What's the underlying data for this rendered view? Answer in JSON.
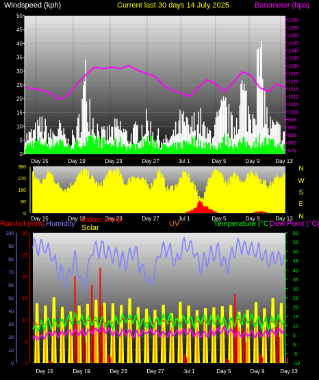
{
  "header": {
    "left": "Windspeed (kph)",
    "center": "Current last 30 days 14 July 2025",
    "right": "Barometer (hpa)"
  },
  "colors": {
    "wind": "#ffffff",
    "gust": "#00ff00",
    "baro": "#ff00ff",
    "dir": "#ffff00",
    "rain": "#ff0000",
    "hum": "#8080ff",
    "indoor": "#ff0000",
    "solar": "#ffff00",
    "uv": "#ff8000",
    "temp": "#00ff00",
    "dew": "#ff00ff",
    "compass": "#ffff00"
  },
  "panel3_legend": {
    "rainfall": "Rainfall (mm)",
    "humidity": "Humidity",
    "indoor": "Indoor temp",
    "solar": "Solar",
    "uv": "UV",
    "temperature": "Temperature (°C)",
    "dewpoint": "Dew Point (°C)"
  },
  "compass_labels": [
    "N",
    "W",
    "S",
    "E",
    "N"
  ],
  "chart_data": [
    {
      "type": "line",
      "x_tick_labels": [
        "Day 15",
        "Day 19",
        "Day 23",
        "Day 27",
        "Jul 1",
        "Day 5",
        "Day 9",
        "Day 13"
      ],
      "y_left": {
        "label": "Windspeed (kph)",
        "range": [
          0,
          50
        ],
        "ticks": [
          "0",
          "5",
          "10",
          "15",
          "20",
          "25",
          "30",
          "35",
          "40",
          "45",
          "50"
        ]
      },
      "y_right": {
        "label": "Barometer (hpa)",
        "range": [
          972.5,
          1062.5
        ],
        "ticks": [
          "975",
          "980",
          "985",
          "990",
          "995",
          "1000",
          "1005",
          "1010",
          "1015",
          "1020",
          "1025",
          "1030",
          "1035",
          "1040",
          "1045",
          "1050",
          "1055",
          "1060"
        ]
      },
      "series": [
        {
          "name": "",
          "color": "#ffffff",
          "values": [
            8,
            10,
            14,
            9,
            12,
            6,
            10,
            34,
            15,
            9,
            11,
            13,
            8,
            12,
            15,
            10,
            6,
            8,
            16,
            12,
            18,
            9,
            14,
            22,
            12,
            31,
            18,
            45,
            14,
            12,
            10
          ]
        },
        {
          "name": "",
          "color": "#00ff00",
          "values": [
            3,
            5,
            5,
            4,
            6,
            3,
            4,
            5,
            6,
            5,
            4,
            5,
            3,
            4,
            6,
            5,
            3,
            3,
            4,
            6,
            5,
            4,
            3,
            6,
            4,
            5,
            4,
            6,
            5,
            4,
            3
          ]
        },
        {
          "name": "",
          "color": "#ff00ff",
          "values": [
            1016,
            1015,
            1014,
            1012,
            1008,
            1011,
            1018,
            1024,
            1029,
            1028,
            1029,
            1028,
            1030,
            1027,
            1025,
            1023,
            1017,
            1014,
            1012,
            1010,
            1016,
            1021,
            1018,
            1013,
            1019,
            1026,
            1024,
            1016,
            1013,
            1018,
            1016
          ]
        }
      ]
    },
    {
      "type": "bar",
      "x_tick_labels": [
        "Day 15",
        "Day 19",
        "Day 23",
        "Day 27",
        "Jul 1",
        "Day 5",
        "Day 9",
        "Day 13"
      ],
      "y_left": {
        "range": [
          0,
          360
        ],
        "ticks": [
          "0",
          "90",
          "180",
          "270",
          "360"
        ]
      },
      "series": [
        {
          "name": "",
          "color": "#ffff00",
          "values": [
            300,
            230,
            320,
            210,
            180,
            250,
            330,
            270,
            200,
            310,
            330,
            220,
            290,
            250,
            200,
            330,
            180,
            210,
            310,
            240,
            90,
            270,
            330,
            230,
            290,
            250,
            320,
            260,
            210,
            270,
            300
          ]
        },
        {
          "name": "",
          "color": "#ff0000",
          "values": [
            0,
            0,
            0,
            0,
            0,
            0,
            0,
            0,
            0,
            0,
            0,
            0,
            0,
            0,
            0,
            0,
            0,
            0,
            0,
            30,
            120,
            40,
            0,
            0,
            0,
            0,
            0,
            20,
            0,
            0,
            0
          ]
        }
      ]
    },
    {
      "type": "line",
      "x_tick_labels": [
        "Day 15",
        "Day 19",
        "Day 23",
        "Day 27",
        "Jul 1",
        "Day 5",
        "Day 9",
        "Day 13"
      ],
      "y_humidity": {
        "range": [
          0,
          100
        ],
        "ticks": [
          "0",
          "10",
          "20",
          "30",
          "40",
          "50",
          "60",
          "70",
          "80",
          "90",
          "100"
        ]
      },
      "y_rain": {
        "range": [
          0,
          30
        ],
        "ticks": [
          "0",
          "5",
          "10",
          "15",
          "20",
          "25",
          "30"
        ]
      },
      "y_temp": {
        "range": [
          -10,
          60
        ],
        "ticks": [
          "-10",
          "-5",
          "0",
          "5",
          "10",
          "15",
          "20",
          "25",
          "30",
          "35",
          "40",
          "45",
          "50",
          "55",
          "60"
        ]
      },
      "series": [
        {
          "name": "Humidity",
          "color": "#8080ff",
          "values": [
            88,
            90,
            85,
            72,
            62,
            80,
            58,
            86,
            88,
            84,
            82,
            78,
            86,
            72,
            60,
            84,
            88,
            76,
            90,
            88,
            74,
            82,
            86,
            74,
            88,
            90,
            86,
            84,
            78,
            80,
            82
          ]
        },
        {
          "name": "Rainfall (mm)",
          "color": "#ff0000",
          "values": [
            0,
            0,
            0.5,
            0,
            0,
            20,
            8,
            18,
            22,
            2,
            0,
            0,
            0,
            0,
            0,
            0,
            0,
            0,
            2,
            0,
            0,
            0,
            0,
            1,
            16,
            8,
            0,
            2,
            0,
            10,
            2
          ]
        },
        {
          "name": "Temperature (°C)",
          "color": "#00ff00",
          "values": [
            8,
            10,
            12,
            11,
            13,
            14,
            12,
            13,
            12,
            11,
            12,
            14,
            13,
            12,
            11,
            13,
            14,
            12,
            13,
            12,
            14,
            12,
            13,
            11,
            12,
            14,
            13,
            12,
            11,
            13,
            12
          ]
        },
        {
          "name": "Dew Point (°C)",
          "color": "#ff00ff",
          "values": [
            3,
            4,
            6,
            5,
            6,
            7,
            6,
            7,
            8,
            7,
            6,
            7,
            5,
            6,
            7,
            6,
            5,
            6,
            7,
            6,
            5,
            6,
            7,
            8,
            6,
            5,
            6,
            5,
            6,
            7,
            8
          ]
        },
        {
          "name": "Indoor temp",
          "color": "#ff0000",
          "values": [
            11,
            11,
            12,
            12,
            12,
            13,
            13,
            12,
            12,
            12,
            12,
            13,
            13,
            12,
            12,
            12,
            12,
            12,
            13,
            12,
            12,
            12,
            12,
            12,
            13,
            13,
            12,
            12,
            12,
            12,
            12
          ]
        },
        {
          "name": "Solar",
          "color": "#ffff00",
          "values": [
            22,
            20,
            24,
            21,
            22,
            23,
            20,
            24,
            22,
            21,
            23,
            24,
            22,
            20,
            23,
            22,
            21,
            24,
            22,
            20,
            23,
            21,
            24,
            22,
            21,
            23,
            22,
            20,
            24,
            21,
            22
          ]
        },
        {
          "name": "UV",
          "color": "#ff8000",
          "values": [
            3,
            3,
            4,
            3,
            3,
            4,
            3,
            3,
            4,
            3,
            3,
            4,
            3,
            3,
            4,
            3,
            3,
            4,
            3,
            3,
            4,
            3,
            3,
            4,
            3,
            3,
            4,
            3,
            3,
            4,
            3
          ]
        }
      ]
    }
  ]
}
